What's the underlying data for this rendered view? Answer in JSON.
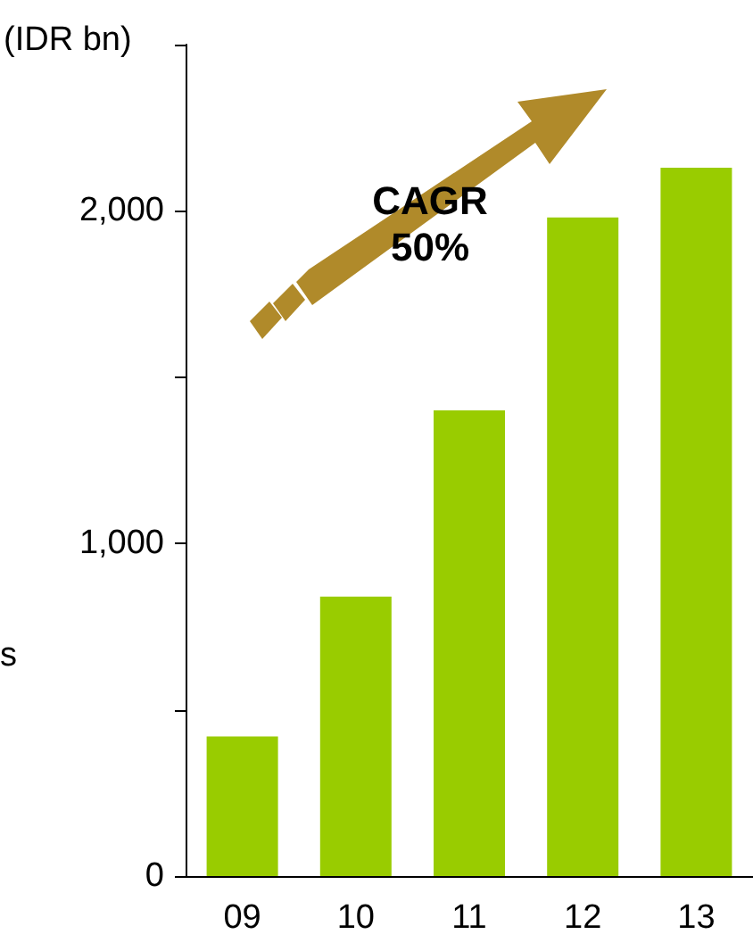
{
  "chart_data": {
    "type": "bar",
    "ylabel": "(IDR bn)",
    "categories": [
      "09",
      "10",
      "11",
      "12",
      "13"
    ],
    "values": [
      420,
      840,
      1400,
      1980,
      2130
    ],
    "color": "#99cc00",
    "ylim": [
      0,
      2500
    ],
    "yticks": [
      0,
      {
        "value": 500,
        "label": null
      },
      {
        "value": 1000,
        "label": "1,000"
      },
      {
        "value": 1500,
        "label": null
      },
      {
        "value": 2000,
        "label": "2,000"
      },
      {
        "value": 2500,
        "label": null
      }
    ],
    "grid": false,
    "annotations": [
      "CAGR 50%",
      "s"
    ]
  }
}
